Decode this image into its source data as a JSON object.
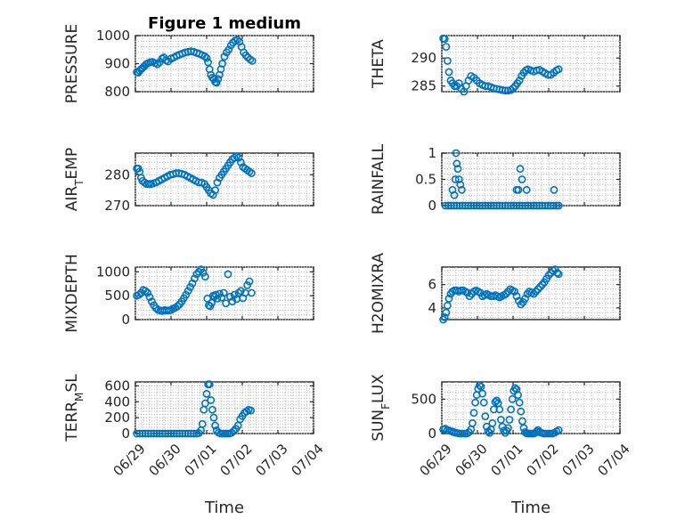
{
  "figure": {
    "title": "Figure 1 medium",
    "marker_color": "#0072bd"
  },
  "chart_data": [
    {
      "type": "scatter",
      "name": "PRESSURE",
      "ylabel": "PRESSURE",
      "xlabel": "",
      "title": "Figure 1 medium",
      "ylim": [
        800,
        1000
      ],
      "yticks": [
        800,
        900,
        1000
      ],
      "ytick_labels": [
        "800",
        "900",
        "1000"
      ],
      "xlim": [
        0,
        5
      ],
      "xticks": [
        0,
        1,
        2,
        3,
        4,
        5
      ],
      "grid": true,
      "minor_grid": true,
      "x": [
        0.04,
        0.08,
        0.12,
        0.16,
        0.2,
        0.25,
        0.3,
        0.36,
        0.42,
        0.48,
        0.55,
        0.62,
        0.68,
        0.75,
        0.8,
        0.86,
        0.92,
        1.0,
        1.08,
        1.16,
        1.24,
        1.32,
        1.4,
        1.48,
        1.56,
        1.64,
        1.72,
        1.8,
        1.88,
        1.95,
        2.0,
        2.04,
        2.08,
        2.12,
        2.16,
        2.2,
        2.24,
        2.28,
        2.32,
        2.36,
        2.4,
        2.44,
        2.5,
        2.56,
        2.62,
        2.68,
        2.74,
        2.8,
        2.86,
        2.92,
        2.98,
        3.04,
        3.1,
        3.16,
        3.22,
        3.28
      ],
      "y": [
        870,
        868,
        875,
        880,
        885,
        890,
        898,
        902,
        905,
        906,
        902,
        898,
        905,
        918,
        922,
        912,
        908,
        918,
        922,
        928,
        932,
        936,
        940,
        942,
        944,
        942,
        938,
        935,
        930,
        926,
        920,
        905,
        880,
        860,
        850,
        845,
        835,
        832,
        845,
        860,
        880,
        900,
        925,
        940,
        950,
        965,
        975,
        982,
        985,
        978,
        960,
        940,
        930,
        922,
        915,
        910
      ]
    },
    {
      "type": "scatter",
      "name": "THETA",
      "ylabel": "THETA",
      "xlabel": "",
      "ylim": [
        284,
        294
      ],
      "yticks": [
        285,
        290
      ],
      "ytick_labels": [
        "285",
        "290"
      ],
      "xlim": [
        0,
        5
      ],
      "xticks": [
        0,
        1,
        2,
        3,
        4,
        5
      ],
      "grid": true,
      "minor_grid": true,
      "x": [
        0.04,
        0.08,
        0.12,
        0.16,
        0.2,
        0.25,
        0.3,
        0.36,
        0.42,
        0.48,
        0.55,
        0.62,
        0.68,
        0.75,
        0.82,
        0.9,
        0.98,
        1.06,
        1.14,
        1.22,
        1.3,
        1.38,
        1.46,
        1.54,
        1.62,
        1.7,
        1.78,
        1.86,
        1.94,
        2.0,
        2.06,
        2.12,
        2.18,
        2.24,
        2.3,
        2.36,
        2.42,
        2.5,
        2.58,
        2.66,
        2.74,
        2.82,
        2.9,
        2.98,
        3.06,
        3.14,
        3.22,
        3.28
      ],
      "y": [
        293.5,
        293.4,
        292.0,
        289.5,
        287.5,
        286.0,
        285.5,
        285.0,
        285.0,
        285.5,
        284.5,
        284.0,
        285.0,
        286.0,
        286.8,
        286.5,
        286.0,
        285.5,
        285.2,
        285.0,
        285.0,
        284.8,
        284.6,
        284.5,
        284.4,
        284.3,
        284.2,
        284.2,
        284.3,
        284.6,
        285.0,
        285.5,
        286.0,
        286.8,
        287.4,
        287.8,
        288.0,
        287.8,
        287.6,
        287.8,
        287.9,
        287.6,
        287.3,
        287.0,
        287.0,
        287.4,
        287.8,
        288.0
      ]
    },
    {
      "type": "scatter",
      "name": "AIR_TEMP",
      "ylabel": "AIR",
      "ylabel_sub": "T",
      "ylabel_suffix": "EMP",
      "xlabel": "",
      "ylim": [
        270,
        287
      ],
      "yticks": [
        270,
        280
      ],
      "ytick_labels": [
        "270",
        "280"
      ],
      "xlim": [
        0,
        5
      ],
      "xticks": [
        0,
        1,
        2,
        3,
        4,
        5
      ],
      "grid": true,
      "minor_grid": true,
      "x": [
        0.04,
        0.08,
        0.12,
        0.16,
        0.2,
        0.26,
        0.32,
        0.38,
        0.44,
        0.5,
        0.58,
        0.66,
        0.74,
        0.82,
        0.9,
        0.98,
        1.06,
        1.14,
        1.22,
        1.3,
        1.38,
        1.46,
        1.54,
        1.62,
        1.7,
        1.78,
        1.86,
        1.94,
        2.0,
        2.06,
        2.12,
        2.18,
        2.24,
        2.3,
        2.36,
        2.42,
        2.48,
        2.54,
        2.6,
        2.66,
        2.72,
        2.78,
        2.84,
        2.9,
        2.96,
        3.02,
        3.08,
        3.14,
        3.2,
        3.26
      ],
      "y": [
        282,
        282,
        281,
        279,
        278,
        277.5,
        277,
        277,
        277,
        277.2,
        277.5,
        278,
        278.5,
        279,
        279.5,
        280,
        280.2,
        280.5,
        280.5,
        280.3,
        280,
        279.5,
        279,
        278.5,
        278,
        277.5,
        277.5,
        277,
        276,
        275,
        274,
        273.5,
        275,
        277.5,
        279,
        280,
        281,
        282,
        283,
        284,
        285,
        285.5,
        286,
        285.5,
        284,
        282.5,
        282,
        281.5,
        281,
        280.5
      ]
    },
    {
      "type": "scatter",
      "name": "RAINFALL",
      "ylabel": "RAINFALL",
      "xlabel": "",
      "ylim": [
        0,
        1
      ],
      "yticks": [
        0,
        0.5,
        1
      ],
      "ytick_labels": [
        "0",
        "0.5",
        "1"
      ],
      "xlim": [
        0,
        5
      ],
      "xticks": [
        0,
        1,
        2,
        3,
        4,
        5
      ],
      "grid": true,
      "minor_grid": true,
      "x": [
        0.1,
        0.18,
        0.26,
        0.34,
        0.42,
        0.5,
        0.58,
        0.66,
        0.74,
        0.82,
        0.9,
        0.98,
        1.06,
        1.14,
        1.22,
        1.3,
        1.38,
        1.46,
        1.54,
        1.62,
        1.7,
        1.78,
        1.86,
        1.94,
        2.02,
        2.1,
        2.18,
        2.26,
        2.34,
        2.42,
        2.5,
        2.58,
        2.66,
        2.74,
        2.82,
        2.9,
        2.98,
        3.06,
        3.14,
        3.22,
        3.28,
        0.35,
        0.38,
        0.4,
        0.42,
        0.45,
        0.48,
        0.52,
        0.56,
        0.3,
        2.1,
        2.15,
        2.2,
        2.25,
        2.38,
        3.15
      ],
      "y": [
        0,
        0,
        0,
        0,
        0,
        0,
        0,
        0,
        0,
        0,
        0,
        0,
        0,
        0,
        0,
        0,
        0,
        0,
        0,
        0,
        0,
        0,
        0,
        0,
        0,
        0,
        0,
        0,
        0,
        0,
        0,
        0,
        0,
        0,
        0,
        0,
        0,
        0,
        0,
        0,
        0,
        0.2,
        0.5,
        1.0,
        0.8,
        0.7,
        0.5,
        0.4,
        0.3,
        0.3,
        0.3,
        0.3,
        0.7,
        0.5,
        0.3,
        0.3
      ]
    },
    {
      "type": "scatter",
      "name": "MIXDEPTH",
      "ylabel": "MIXDEPTH",
      "xlabel": "",
      "ylim": [
        0,
        1100
      ],
      "yticks": [
        0,
        500,
        1000
      ],
      "ytick_labels": [
        "0",
        "500",
        "1000"
      ],
      "xlim": [
        0,
        5
      ],
      "xticks": [
        0,
        1,
        2,
        3,
        4,
        5
      ],
      "grid": true,
      "minor_grid": true,
      "x": [
        0.04,
        0.1,
        0.16,
        0.22,
        0.28,
        0.34,
        0.4,
        0.46,
        0.52,
        0.58,
        0.64,
        0.7,
        0.76,
        0.82,
        0.88,
        0.94,
        1.0,
        1.06,
        1.12,
        1.18,
        1.24,
        1.3,
        1.36,
        1.42,
        1.48,
        1.54,
        1.6,
        1.66,
        1.72,
        1.78,
        1.84,
        1.9,
        1.96,
        2.02,
        2.06,
        2.1,
        2.14,
        2.18,
        2.22,
        2.26,
        2.3,
        2.36,
        2.42,
        2.48,
        2.54,
        2.6,
        2.66,
        2.72,
        2.78,
        2.84,
        2.9,
        2.96,
        3.02,
        3.08,
        3.14,
        3.2,
        3.26
      ],
      "y": [
        500,
        520,
        560,
        620,
        600,
        560,
        470,
        380,
        300,
        240,
        200,
        190,
        180,
        200,
        190,
        190,
        200,
        230,
        250,
        280,
        320,
        380,
        450,
        520,
        600,
        680,
        760,
        860,
        950,
        1000,
        1050,
        980,
        900,
        440,
        300,
        280,
        350,
        500,
        480,
        520,
        440,
        540,
        460,
        560,
        340,
        950,
        480,
        380,
        520,
        430,
        560,
        600,
        450,
        560,
        720,
        800,
        560
      ]
    },
    {
      "type": "scatter",
      "name": "H2OMIXRA",
      "ylabel": "H2OMIXRA",
      "xlabel": "",
      "ylim": [
        3,
        7.5
      ],
      "yticks": [
        4,
        6
      ],
      "ytick_labels": [
        "4",
        "6"
      ],
      "xlim": [
        0,
        5
      ],
      "xticks": [
        0,
        1,
        2,
        3,
        4,
        5
      ],
      "grid": true,
      "minor_grid": true,
      "x": [
        0.04,
        0.08,
        0.12,
        0.16,
        0.2,
        0.25,
        0.3,
        0.36,
        0.42,
        0.48,
        0.54,
        0.6,
        0.66,
        0.72,
        0.78,
        0.84,
        0.9,
        0.96,
        1.02,
        1.08,
        1.14,
        1.2,
        1.26,
        1.32,
        1.38,
        1.44,
        1.5,
        1.56,
        1.62,
        1.68,
        1.74,
        1.8,
        1.86,
        1.92,
        1.98,
        2.04,
        2.1,
        2.16,
        2.22,
        2.28,
        2.34,
        2.4,
        2.46,
        2.52,
        2.58,
        2.64,
        2.7,
        2.76,
        2.82,
        2.88,
        2.94,
        3.0,
        3.06,
        3.12,
        3.18,
        3.24,
        3.28
      ],
      "y": [
        3.0,
        3.2,
        3.6,
        4.2,
        4.8,
        5.2,
        5.4,
        5.5,
        5.5,
        5.4,
        5.5,
        5.5,
        5.4,
        5.3,
        5.0,
        5.2,
        5.4,
        5.5,
        5.4,
        5.3,
        5.0,
        5.1,
        5.2,
        5.1,
        5.0,
        5.0,
        5.1,
        5.0,
        4.9,
        5.0,
        5.1,
        5.2,
        5.4,
        5.6,
        5.5,
        5.4,
        5.0,
        4.6,
        4.3,
        4.5,
        4.8,
        5.2,
        5.4,
        5.3,
        5.2,
        5.4,
        5.6,
        5.8,
        6.0,
        6.2,
        6.5,
        6.8,
        7.0,
        7.2,
        7.3,
        7.0,
        6.9
      ]
    },
    {
      "type": "scatter",
      "name": "TERR_MSL",
      "ylabel": "TERR",
      "ylabel_sub": "M",
      "ylabel_suffix": "SL",
      "xlabel": "Time",
      "ylim": [
        0,
        650
      ],
      "yticks": [
        0,
        200,
        400,
        600
      ],
      "ytick_labels": [
        "0",
        "200",
        "400",
        "600"
      ],
      "xlim": [
        0,
        5
      ],
      "xticks": [
        0,
        1,
        2,
        3,
        4,
        5
      ],
      "xtick_labels": [
        "06/29",
        "06/30",
        "07/01",
        "07/02",
        "07/03",
        "07/04"
      ],
      "grid": true,
      "minor_grid": true,
      "x": [
        0.04,
        0.12,
        0.2,
        0.28,
        0.36,
        0.44,
        0.52,
        0.6,
        0.68,
        0.76,
        0.84,
        0.92,
        1.0,
        1.08,
        1.16,
        1.24,
        1.32,
        1.4,
        1.48,
        1.56,
        1.64,
        1.72,
        1.78,
        1.84,
        1.88,
        1.92,
        1.96,
        2.0,
        2.04,
        2.08,
        2.12,
        2.16,
        2.2,
        2.24,
        2.28,
        2.34,
        2.4,
        2.46,
        2.52,
        2.58,
        2.64,
        2.7,
        2.76,
        2.82,
        2.88,
        2.94,
        3.0,
        3.06,
        3.12,
        3.18,
        3.24
      ],
      "y": [
        0,
        0,
        0,
        0,
        0,
        0,
        0,
        0,
        0,
        0,
        0,
        0,
        0,
        0,
        0,
        0,
        0,
        0,
        0,
        0,
        0,
        0,
        5,
        40,
        120,
        300,
        380,
        500,
        620,
        620,
        420,
        300,
        200,
        100,
        40,
        10,
        0,
        0,
        0,
        0,
        0,
        10,
        30,
        60,
        100,
        180,
        220,
        260,
        280,
        300,
        290
      ]
    },
    {
      "type": "scatter",
      "name": "SUN_FLUX",
      "ylabel": "SUN",
      "ylabel_sub": "F",
      "ylabel_suffix": "LUX",
      "xlabel": "Time",
      "ylim": [
        0,
        750
      ],
      "yticks": [
        0,
        500
      ],
      "ytick_labels": [
        "0",
        "500"
      ],
      "xlim": [
        0,
        5
      ],
      "xticks": [
        0,
        1,
        2,
        3,
        4,
        5
      ],
      "xtick_labels": [
        "06/29",
        "06/30",
        "07/01",
        "07/02",
        "07/03",
        "07/04"
      ],
      "grid": true,
      "minor_grid": true,
      "x": [
        0.04,
        0.1,
        0.16,
        0.22,
        0.28,
        0.34,
        0.4,
        0.46,
        0.52,
        0.58,
        0.64,
        0.7,
        0.76,
        0.82,
        0.86,
        0.9,
        0.94,
        0.98,
        1.02,
        1.06,
        1.1,
        1.14,
        1.18,
        1.22,
        1.26,
        1.3,
        1.34,
        1.38,
        1.42,
        1.46,
        1.5,
        1.54,
        1.58,
        1.62,
        1.66,
        1.7,
        1.74,
        1.78,
        1.82,
        1.86,
        1.9,
        1.94,
        1.98,
        2.02,
        2.06,
        2.1,
        2.14,
        2.18,
        2.22,
        2.26,
        2.3,
        2.34,
        2.38,
        2.42,
        2.46,
        2.5,
        2.54,
        2.58,
        2.62,
        2.66,
        2.7,
        2.74,
        2.8,
        2.86,
        2.92,
        2.98,
        3.04,
        3.1,
        3.16,
        3.22,
        3.28
      ],
      "y": [
        60,
        70,
        50,
        40,
        30,
        20,
        10,
        5,
        0,
        0,
        0,
        0,
        20,
        60,
        150,
        300,
        450,
        560,
        650,
        700,
        680,
        580,
        450,
        250,
        100,
        30,
        10,
        60,
        150,
        350,
        460,
        480,
        440,
        350,
        200,
        100,
        40,
        10,
        40,
        80,
        200,
        350,
        500,
        620,
        660,
        640,
        560,
        450,
        320,
        180,
        80,
        20,
        5,
        0,
        0,
        0,
        0,
        0,
        10,
        30,
        50,
        20,
        10,
        0,
        0,
        0,
        0,
        0,
        10,
        30,
        50
      ]
    }
  ]
}
